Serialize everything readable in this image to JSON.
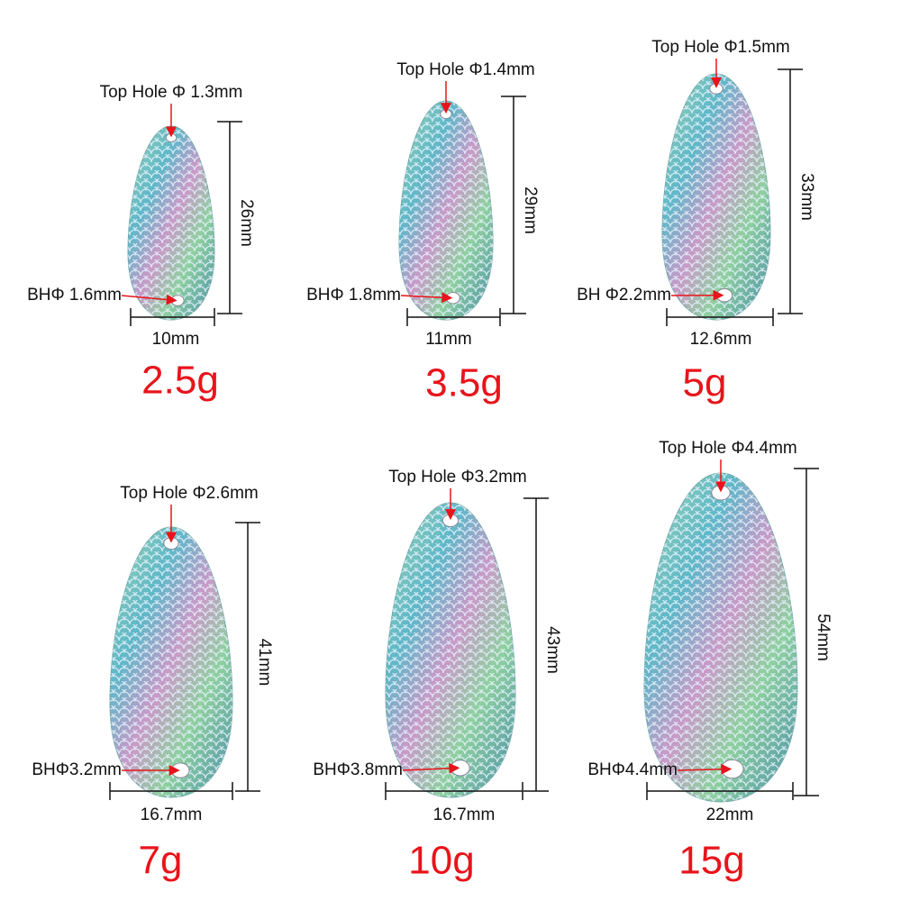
{
  "items": [
    {
      "top_hole": "Top Hole Φ 1.3mm",
      "bottom_hole": "BHΦ 1.6mm",
      "width": "10mm",
      "length": "26mm",
      "weight": "2.5g"
    },
    {
      "top_hole": "Top Hole Φ1.4mm",
      "bottom_hole": "BHΦ 1.8mm",
      "width": "11mm",
      "length": "29mm",
      "weight": "3.5g"
    },
    {
      "top_hole": "Top Hole Φ1.5mm",
      "bottom_hole": "BH Φ2.2mm",
      "width": "12.6mm",
      "length": "33mm",
      "weight": "5g"
    },
    {
      "top_hole": "Top Hole Φ2.6mm",
      "bottom_hole": "BHΦ3.2mm",
      "width": "16.7mm",
      "length": "41mm",
      "weight": "7g"
    },
    {
      "top_hole": "Top Hole Φ3.2mm",
      "bottom_hole": "BHΦ3.8mm",
      "width": "16.7mm",
      "length": "43mm",
      "weight": "10g"
    },
    {
      "top_hole": "Top Hole Φ4.4mm",
      "bottom_hole": "BHΦ4.4mm",
      "width": "22mm",
      "length": "54mm",
      "weight": "15g"
    }
  ]
}
